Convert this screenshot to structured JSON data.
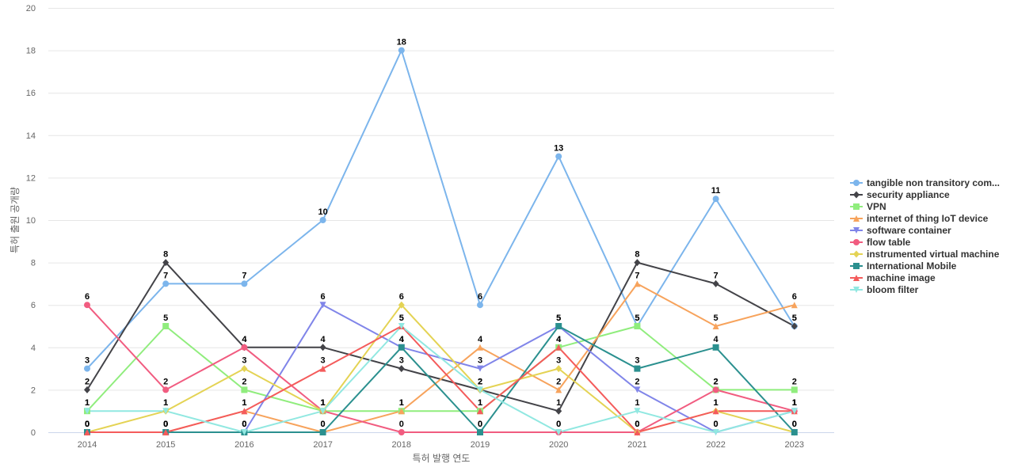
{
  "chart_data": {
    "type": "line",
    "title": "",
    "xlabel": "특허 발행 연도",
    "ylabel": "특허 출원 공개량",
    "categories": [
      "2014",
      "2015",
      "2016",
      "2017",
      "2018",
      "2019",
      "2020",
      "2021",
      "2022",
      "2023"
    ],
    "yticks": [
      "0",
      "2",
      "4",
      "6",
      "8",
      "10",
      "12",
      "14",
      "16",
      "18",
      "20"
    ],
    "ylim": [
      0,
      20
    ],
    "grid": true,
    "legend_position": "right",
    "series": [
      {
        "name": "tangible non transitory com...",
        "color": "#7cb5ec",
        "marker": "circle",
        "values": [
          3,
          7,
          7,
          10,
          18,
          6,
          13,
          5,
          11,
          5
        ]
      },
      {
        "name": "security appliance",
        "color": "#434348",
        "marker": "diamond",
        "values": [
          2,
          8,
          4,
          4,
          3,
          2,
          1,
          8,
          7,
          5
        ]
      },
      {
        "name": "VPN",
        "color": "#90ed7d",
        "marker": "square",
        "values": [
          1,
          5,
          2,
          1,
          1,
          1,
          4,
          5,
          2,
          2
        ]
      },
      {
        "name": "internet of thing IoT device",
        "color": "#f7a35c",
        "marker": "triangle",
        "values": [
          0,
          0,
          1,
          0,
          1,
          4,
          2,
          7,
          5,
          6
        ]
      },
      {
        "name": "software container",
        "color": "#8085e9",
        "marker": "triangle-down",
        "values": [
          0,
          0,
          0,
          6,
          4,
          3,
          5,
          2,
          0,
          1
        ]
      },
      {
        "name": "flow table",
        "color": "#f15c80",
        "marker": "circle",
        "values": [
          6,
          2,
          4,
          1,
          0,
          0,
          0,
          0,
          2,
          1
        ]
      },
      {
        "name": "instrumented virtual machine",
        "color": "#e4d354",
        "marker": "diamond",
        "values": [
          0,
          1,
          3,
          1,
          6,
          2,
          3,
          0,
          1,
          0
        ]
      },
      {
        "name": "International Mobile",
        "color": "#2b908f",
        "marker": "square",
        "values": [
          0,
          0,
          0,
          0,
          4,
          0,
          5,
          3,
          4,
          0
        ]
      },
      {
        "name": "machine image",
        "color": "#f45b5b",
        "marker": "triangle",
        "values": [
          0,
          0,
          1,
          3,
          5,
          1,
          4,
          0,
          1,
          1
        ]
      },
      {
        "name": "bloom filter",
        "color": "#91e8e1",
        "marker": "triangle-down",
        "values": [
          1,
          1,
          0,
          1,
          5,
          2,
          0,
          1,
          0,
          1
        ]
      }
    ],
    "data_labels": [
      {
        "series": 0,
        "values": [
          "3",
          "7",
          "7",
          "10",
          "18",
          "6",
          "13",
          "5",
          "11",
          "5"
        ]
      },
      {
        "series": 1,
        "values": [
          "2",
          "8",
          "4",
          "4",
          "3",
          "2",
          "1",
          "8",
          "7",
          "5"
        ]
      },
      {
        "series": 2,
        "values": [
          "1",
          "5",
          "2",
          "1",
          "1",
          "1",
          "4",
          "5",
          "2",
          "2"
        ]
      },
      {
        "series": 3,
        "values": [
          "0",
          "0",
          "1",
          "0",
          "1",
          "4",
          "2",
          "7",
          "5",
          "6"
        ]
      },
      {
        "series": 4,
        "values": [
          "0",
          "0",
          "0",
          "6",
          "4",
          "3",
          "5",
          "2",
          "0",
          "1"
        ]
      },
      {
        "series": 5,
        "values": [
          "6",
          "2",
          "4",
          "1",
          "0",
          "0",
          "0",
          "0",
          "2",
          "1"
        ]
      },
      {
        "series": 6,
        "values": [
          "0",
          "1",
          "3",
          "1",
          "6",
          "2",
          "3",
          "0",
          "1",
          "0"
        ]
      },
      {
        "series": 7,
        "values": [
          "0",
          "0",
          "0",
          "0",
          "4",
          "0",
          "5",
          "3",
          "4",
          "0"
        ]
      },
      {
        "series": 8,
        "values": [
          "0",
          "0",
          "1",
          "3",
          "5",
          "1",
          "4",
          "0",
          "1",
          "1"
        ]
      },
      {
        "series": 9,
        "values": [
          "1",
          "1",
          "0",
          "1",
          "5",
          "2",
          "0",
          "1",
          "0",
          "1"
        ]
      }
    ]
  }
}
